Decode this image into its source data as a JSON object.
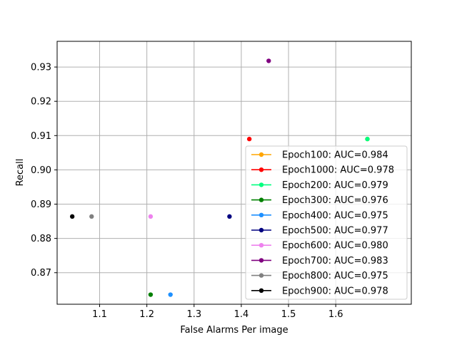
{
  "chart_data": {
    "type": "scatter",
    "title": "",
    "xlabel": "False Alarms Per image",
    "ylabel": "Recall",
    "xlim": [
      1.01,
      1.76
    ],
    "ylim": [
      0.8608,
      0.9375
    ],
    "xticks": [
      1.1,
      1.2,
      1.3,
      1.4,
      1.5,
      1.6
    ],
    "xtick_labels": [
      "1.1",
      "1.2",
      "1.3",
      "1.4",
      "1.5",
      "1.6"
    ],
    "yticks": [
      0.87,
      0.88,
      0.89,
      0.9,
      0.91,
      0.92,
      0.93
    ],
    "ytick_labels": [
      "0.87",
      "0.88",
      "0.89",
      "0.90",
      "0.91",
      "0.92",
      "0.93"
    ],
    "grid": true,
    "legend_position": "lower-right",
    "series": [
      {
        "name": "Epoch100: AUC=0.984",
        "color": "#ffa500",
        "points": [
          {
            "x": 1.667,
            "y": 0.909
          }
        ]
      },
      {
        "name": "Epoch1000: AUC=0.978",
        "color": "#ff0000",
        "points": [
          {
            "x": 1.417,
            "y": 0.909
          }
        ]
      },
      {
        "name": "Epoch200: AUC=0.979",
        "color": "#00ff7f",
        "points": [
          {
            "x": 1.667,
            "y": 0.909
          }
        ]
      },
      {
        "name": "Epoch300: AUC=0.976",
        "color": "#008000",
        "points": [
          {
            "x": 1.208,
            "y": 0.8636
          }
        ]
      },
      {
        "name": "Epoch400: AUC=0.975",
        "color": "#1e90ff",
        "points": [
          {
            "x": 1.25,
            "y": 0.8636
          }
        ]
      },
      {
        "name": "Epoch500: AUC=0.977",
        "color": "#000080",
        "points": [
          {
            "x": 1.375,
            "y": 0.8864
          }
        ]
      },
      {
        "name": "Epoch600: AUC=0.980",
        "color": "#ee82ee",
        "points": [
          {
            "x": 1.208,
            "y": 0.8864
          }
        ]
      },
      {
        "name": "Epoch700: AUC=0.983",
        "color": "#800080",
        "points": [
          {
            "x": 1.458,
            "y": 0.9318
          }
        ]
      },
      {
        "name": "Epoch800: AUC=0.975",
        "color": "#808080",
        "points": [
          {
            "x": 1.083,
            "y": 0.8864
          }
        ]
      },
      {
        "name": "Epoch900: AUC=0.978",
        "color": "#000000",
        "points": [
          {
            "x": 1.042,
            "y": 0.8864
          }
        ]
      }
    ]
  }
}
